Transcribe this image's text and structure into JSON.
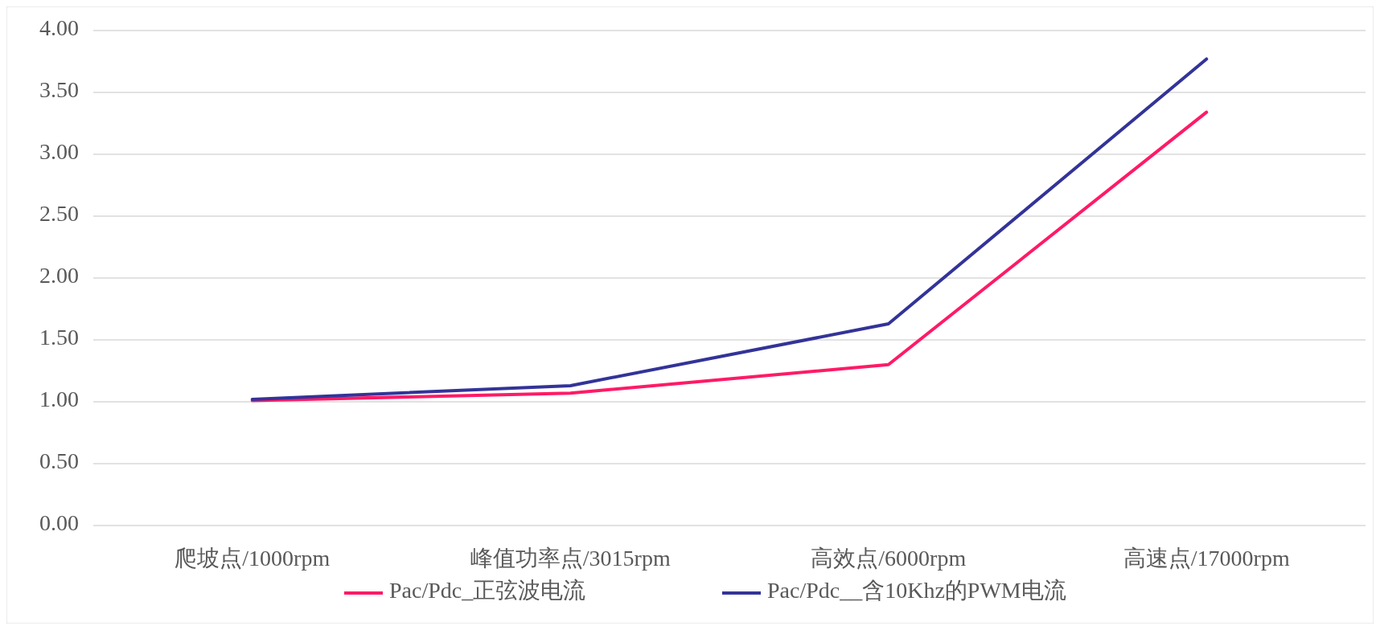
{
  "chart_data": {
    "type": "line",
    "categories": [
      "爬坡点/1000rpm",
      "峰值功率点/3015rpm",
      "高效点/6000rpm",
      "高速点/17000rpm"
    ],
    "series": [
      {
        "name": "Pac/Pdc_正弦波电流",
        "color": "#ff1a66",
        "values": [
          1.01,
          1.07,
          1.3,
          3.34
        ]
      },
      {
        "name": "Pac/Pdc__含10Khz的PWM电流",
        "color": "#333399",
        "values": [
          1.02,
          1.13,
          1.63,
          3.77
        ]
      }
    ],
    "ylim": [
      0,
      4
    ],
    "yticks": [
      {
        "value": 0,
        "label": "0.00"
      },
      {
        "value": 0.5,
        "label": "0.50"
      },
      {
        "value": 1,
        "label": "1.00"
      },
      {
        "value": 1.5,
        "label": "1.50"
      },
      {
        "value": 2,
        "label": "2.00"
      },
      {
        "value": 2.5,
        "label": "2.50"
      },
      {
        "value": 3,
        "label": "3.00"
      },
      {
        "value": 3.5,
        "label": "3.50"
      },
      {
        "value": 4,
        "label": "4.00"
      }
    ],
    "grid": "y",
    "legend": "bottom",
    "marker": "none",
    "line_style": "solid"
  }
}
